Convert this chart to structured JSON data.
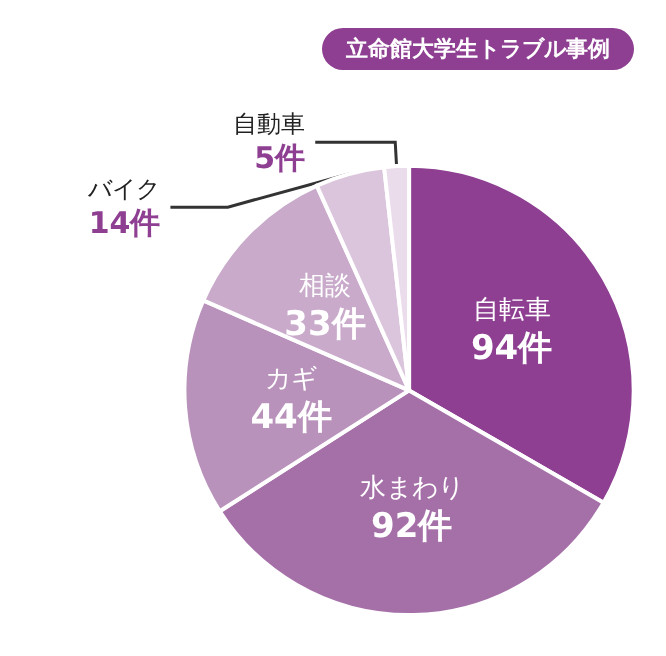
{
  "chart_data": {
    "type": "pie",
    "title": "立命館大学生トラブル事例",
    "categories": [
      "自転車",
      "水まわり",
      "カギ",
      "相談",
      "バイク",
      "自動車"
    ],
    "values": [
      94,
      92,
      44,
      33,
      14,
      5
    ],
    "value_labels": [
      "94件",
      "92件",
      "44件",
      "33件",
      "14件",
      "5件"
    ],
    "colors": [
      "#8e3f92",
      "#a570a8",
      "#b992bb",
      "#c9aacb",
      "#dbc5dc",
      "#ebdcec"
    ]
  }
}
